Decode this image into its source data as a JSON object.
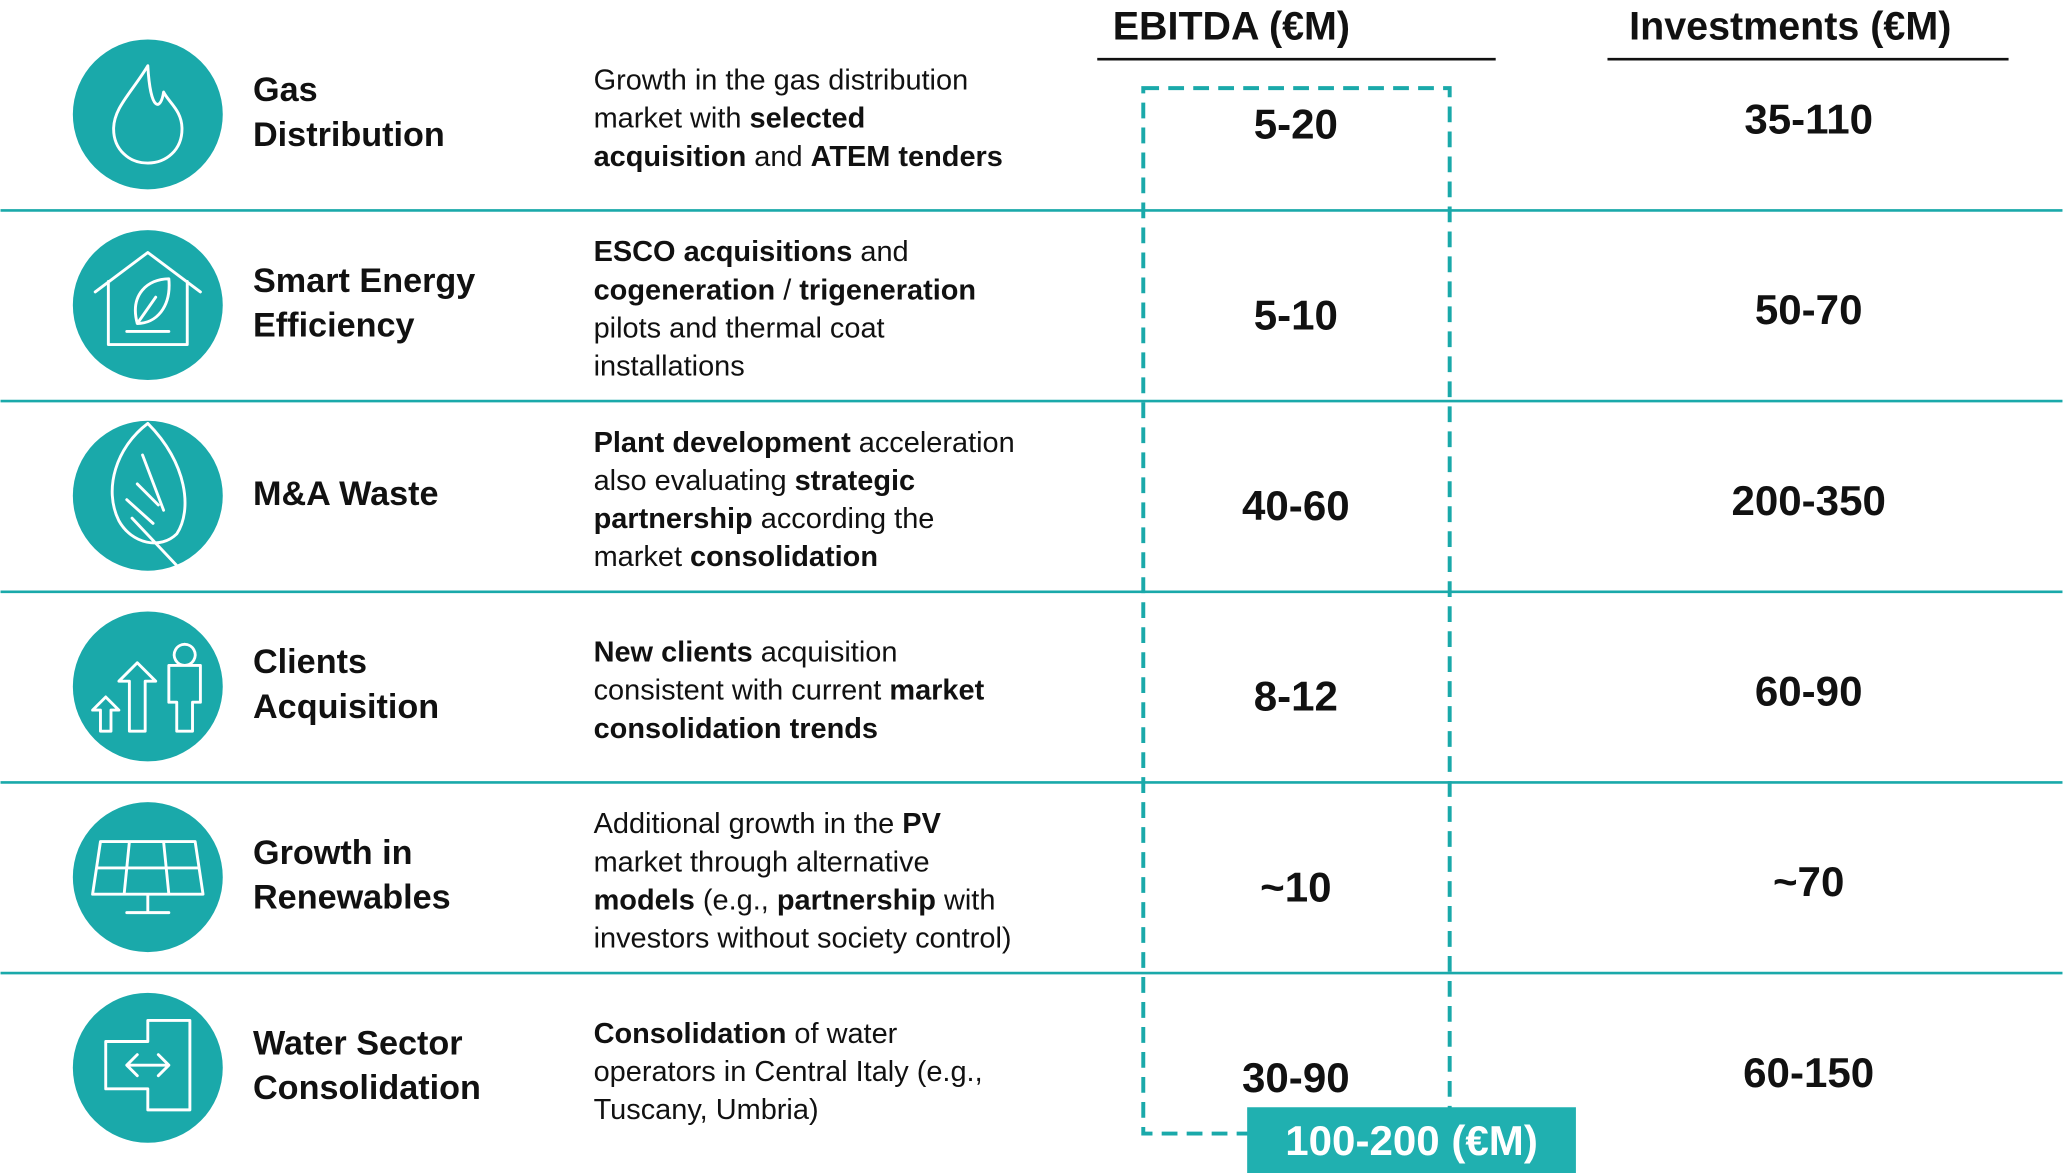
{
  "header": {
    "ebitda": "EBITDA (€M)",
    "investments": "Investments (€M)"
  },
  "rows": [
    {
      "name": [
        "Gas",
        "Distribution"
      ],
      "description": [
        [
          {
            "text": "Growth in the gas distribution",
            "bold": false
          }
        ],
        [
          {
            "text": "market with ",
            "bold": false
          },
          {
            "text": "selected",
            "bold": true
          }
        ],
        [
          {
            "text": "acquisition",
            "bold": true
          },
          {
            "text": " and ",
            "bold": false
          },
          {
            "text": "ATEM tenders",
            "bold": true
          }
        ]
      ],
      "ebitda": "5-20",
      "investments": "35-110"
    },
    {
      "name": [
        "Smart Energy",
        "Efficiency"
      ],
      "description": [
        [
          {
            "text": "ESCO acquisitions",
            "bold": true
          },
          {
            "text": " and",
            "bold": false
          }
        ],
        [
          {
            "text": "cogeneration",
            "bold": true
          },
          {
            "text": " / ",
            "bold": false
          },
          {
            "text": "trigeneration",
            "bold": true
          }
        ],
        [
          {
            "text": "pilots and thermal coat",
            "bold": false
          }
        ],
        [
          {
            "text": "installations",
            "bold": false
          }
        ]
      ],
      "ebitda": "5-10",
      "investments": "50-70"
    },
    {
      "name": [
        "M&A Waste"
      ],
      "description": [
        [
          {
            "text": "Plant development",
            "bold": true
          },
          {
            "text": " acceleration",
            "bold": false
          }
        ],
        [
          {
            "text": "also evaluating ",
            "bold": false
          },
          {
            "text": "strategic",
            "bold": true
          }
        ],
        [
          {
            "text": "partnership",
            "bold": true
          },
          {
            "text": " according the",
            "bold": false
          }
        ],
        [
          {
            "text": "market ",
            "bold": false
          },
          {
            "text": "consolidation",
            "bold": true
          }
        ]
      ],
      "ebitda": "40-60",
      "investments": "200-350"
    },
    {
      "name": [
        "Clients",
        "Acquisition"
      ],
      "description": [
        [
          {
            "text": "New clients",
            "bold": true
          },
          {
            "text": " acquisition",
            "bold": false
          }
        ],
        [
          {
            "text": "consistent with current ",
            "bold": false
          },
          {
            "text": "market",
            "bold": true
          }
        ],
        [
          {
            "text": "consolidation trends",
            "bold": true
          }
        ]
      ],
      "ebitda": "8-12",
      "investments": "60-90"
    },
    {
      "name": [
        "Growth in",
        "Renewables"
      ],
      "description": [
        [
          {
            "text": "Additional growth in the ",
            "bold": false
          },
          {
            "text": "PV",
            "bold": true
          }
        ],
        [
          {
            "text": "market through alternative",
            "bold": false
          }
        ],
        [
          {
            "text": "models",
            "bold": true
          },
          {
            "text": " (e.g., ",
            "bold": false
          },
          {
            "text": "partnership",
            "bold": true
          },
          {
            "text": " with",
            "bold": false
          }
        ],
        [
          {
            "text": "investors without society control)",
            "bold": false
          }
        ]
      ],
      "ebitda": "~10",
      "investments": "~70"
    },
    {
      "name": [
        "Water Sector",
        "Consolidation"
      ],
      "description": [
        [
          {
            "text": "Consolidation",
            "bold": true
          },
          {
            "text": " of water",
            "bold": false
          }
        ],
        [
          {
            "text": "operators in Central Italy (e.g.,",
            "bold": false
          }
        ],
        [
          {
            "text": "Tuscany, Umbria)",
            "bold": false
          }
        ]
      ],
      "ebitda": "30-90",
      "investments": "60-150"
    }
  ],
  "total": "100-200 (€M)"
}
